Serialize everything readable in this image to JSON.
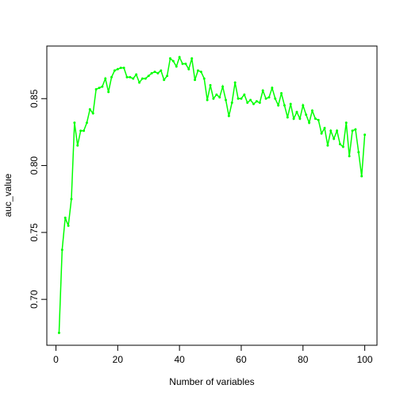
{
  "chart_data": {
    "type": "line",
    "x_label": "Number of variables",
    "y_label": "auc_value",
    "color": "#00ff00",
    "x": [
      1,
      2,
      3,
      4,
      5,
      6,
      7,
      8,
      9,
      10,
      11,
      12,
      13,
      14,
      15,
      16,
      17,
      18,
      19,
      20,
      21,
      22,
      23,
      24,
      25,
      26,
      27,
      28,
      29,
      30,
      31,
      32,
      33,
      34,
      35,
      36,
      37,
      38,
      39,
      40,
      41,
      42,
      43,
      44,
      45,
      46,
      47,
      48,
      49,
      50,
      51,
      52,
      53,
      54,
      55,
      56,
      57,
      58,
      59,
      60,
      61,
      62,
      63,
      64,
      65,
      66,
      67,
      68,
      69,
      70,
      71,
      72,
      73,
      74,
      75,
      76,
      77,
      78,
      79,
      80,
      81,
      82,
      83,
      84,
      85,
      86,
      87,
      88,
      89,
      90,
      91,
      92,
      93,
      94,
      95,
      96,
      97,
      98,
      99,
      100
    ],
    "values": [
      0.675,
      0.737,
      0.761,
      0.755,
      0.775,
      0.832,
      0.815,
      0.826,
      0.826,
      0.832,
      0.842,
      0.839,
      0.857,
      0.858,
      0.859,
      0.865,
      0.855,
      0.866,
      0.871,
      0.872,
      0.873,
      0.873,
      0.866,
      0.866,
      0.865,
      0.868,
      0.862,
      0.865,
      0.865,
      0.867,
      0.869,
      0.87,
      0.869,
      0.871,
      0.864,
      0.867,
      0.88,
      0.878,
      0.874,
      0.881,
      0.876,
      0.876,
      0.872,
      0.88,
      0.864,
      0.871,
      0.87,
      0.865,
      0.849,
      0.86,
      0.85,
      0.853,
      0.851,
      0.859,
      0.849,
      0.837,
      0.847,
      0.862,
      0.85,
      0.85,
      0.853,
      0.847,
      0.849,
      0.846,
      0.848,
      0.847,
      0.856,
      0.85,
      0.851,
      0.858,
      0.85,
      0.845,
      0.854,
      0.845,
      0.836,
      0.846,
      0.835,
      0.84,
      0.835,
      0.845,
      0.838,
      0.832,
      0.841,
      0.835,
      0.834,
      0.824,
      0.828,
      0.815,
      0.826,
      0.82,
      0.826,
      0.816,
      0.814,
      0.832,
      0.807,
      0.826,
      0.827,
      0.81,
      0.792,
      0.823
    ],
    "xlim": [
      -2.96,
      103.96
    ],
    "ylim": [
      0.6657,
      0.8893
    ],
    "xticks": [
      0,
      20,
      40,
      60,
      80,
      100
    ],
    "yticks": [
      {
        "value": 0.7,
        "label": "0.70"
      },
      0.75,
      {
        "value": 0.8,
        "label": "0.80"
      },
      0.85
    ]
  }
}
